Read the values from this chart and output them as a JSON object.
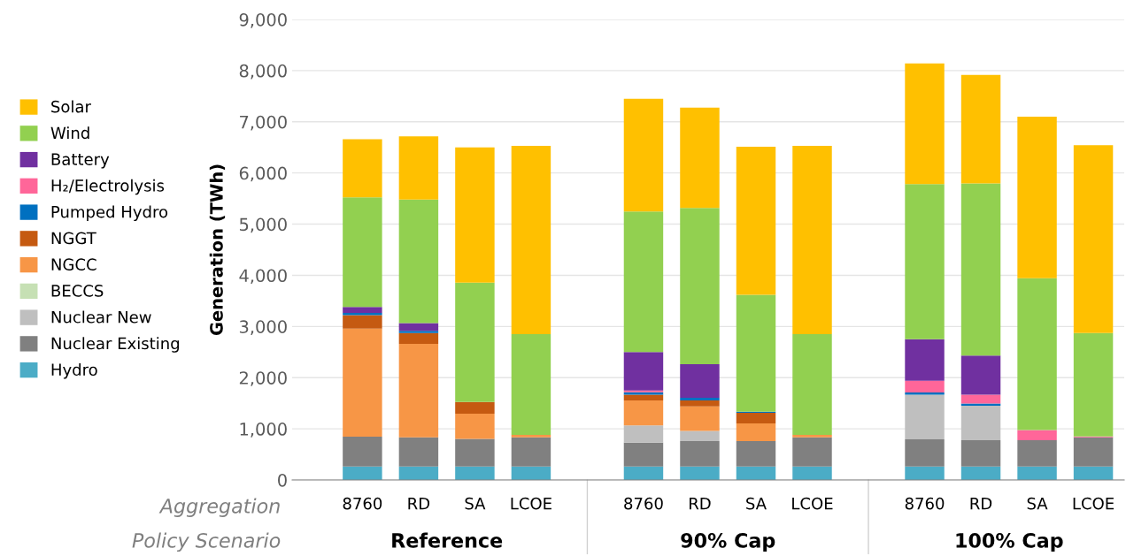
{
  "chart_data": {
    "type": "bar",
    "stacked": true,
    "ylabel": "Generation (TWh)",
    "categories": [
      "8760",
      "RD",
      "SA",
      "LCOE",
      null,
      "8760",
      "RD",
      "SA",
      "LCOE",
      null,
      "8760",
      "RD",
      "SA",
      "LCOE"
    ],
    "series": [
      {
        "name": "Hydro",
        "color": "#4bacc6",
        "values": [
          265,
          265,
          265,
          265,
          null,
          265,
          265,
          265,
          265,
          null,
          265,
          265,
          265,
          265
        ]
      },
      {
        "name": "Nuclear Existing",
        "color": "#808080",
        "values": [
          581,
          568,
          537,
          568,
          null,
          463,
          494,
          494,
          568,
          null,
          531,
          513,
          513,
          568
        ]
      },
      {
        "name": "Nuclear New",
        "color": "#bfbfbf",
        "values": [
          0,
          0,
          0,
          0,
          null,
          340,
          198,
          0,
          0,
          null,
          871,
          673,
          0,
          0
        ]
      },
      {
        "name": "BECCS",
        "color": "#c6e0b4",
        "values": [
          0,
          0,
          0,
          0,
          null,
          0,
          0,
          0,
          0,
          null,
          0,
          0,
          0,
          0
        ]
      },
      {
        "name": "NGCC",
        "color": "#f79646",
        "values": [
          2111,
          1827,
          494,
          50,
          null,
          488,
          481,
          346,
          50,
          null,
          0,
          0,
          0,
          0
        ]
      },
      {
        "name": "NGGT",
        "color": "#c55a11",
        "values": [
          265,
          210,
          229,
          0,
          null,
          111,
          118,
          210,
          0,
          null,
          0,
          0,
          0,
          0
        ]
      },
      {
        "name": "Pumped Hydro",
        "color": "#0070c0",
        "values": [
          43,
          44,
          0,
          0,
          null,
          49,
          49,
          18,
          0,
          null,
          43,
          43,
          0,
          0
        ]
      },
      {
        "name": "H₂/Electrolysis",
        "color": "#ff6699",
        "values": [
          0,
          0,
          0,
          0,
          null,
          31,
          0,
          0,
          0,
          null,
          228,
          173,
          197,
          19
        ]
      },
      {
        "name": "Battery",
        "color": "#7030a0",
        "values": [
          118,
          154,
          0,
          0,
          null,
          753,
          660,
          0,
          0,
          null,
          815,
          765,
          0,
          0
        ]
      },
      {
        "name": "Wind",
        "color": "#92d050",
        "values": [
          2142,
          2413,
          2333,
          1969,
          null,
          2747,
          3050,
          2284,
          1969,
          null,
          3031,
          3364,
          2969,
          2018
        ]
      },
      {
        "name": "Solar",
        "color": "#ffc000",
        "values": [
          1135,
          1235,
          2642,
          3679,
          null,
          2204,
          1963,
          2895,
          3679,
          null,
          2358,
          2118,
          3155,
          3673
        ]
      }
    ],
    "ylim": [
      0,
      9000
    ],
    "yticks": [
      {
        "value": 0,
        "label": "0"
      },
      {
        "value": 1000,
        "label": "1,000"
      },
      {
        "value": 2000,
        "label": "2,000"
      },
      {
        "value": 3000,
        "label": "3,000"
      },
      {
        "value": 4000,
        "label": "4,000"
      },
      {
        "value": 5000,
        "label": "5,000"
      },
      {
        "value": 6000,
        "label": "6,000"
      },
      {
        "value": 7000,
        "label": "7,000"
      },
      {
        "value": 8000,
        "label": "8,000"
      },
      {
        "value": 9000,
        "label": "9,000"
      }
    ],
    "grid": "y",
    "legend": "left",
    "annotations": [
      "Aggregation",
      "Policy Scenario",
      "Reference",
      "90% Cap",
      "100% Cap"
    ]
  }
}
